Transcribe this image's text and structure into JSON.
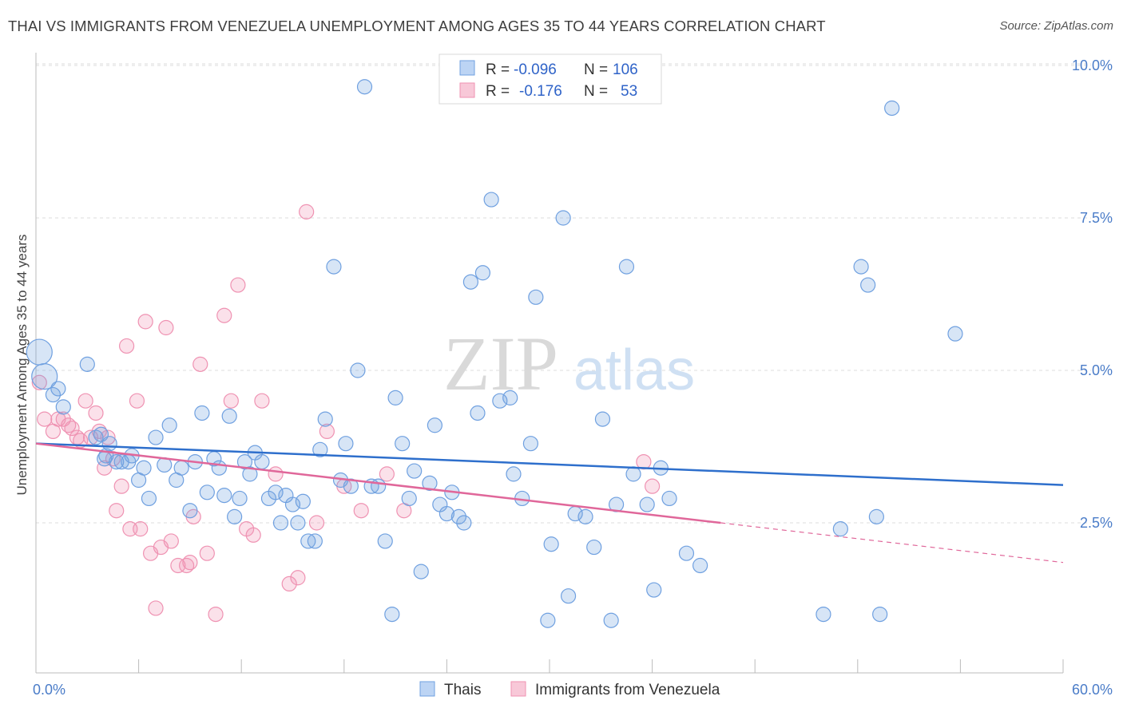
{
  "header": {
    "title": "THAI VS IMMIGRANTS FROM VENEZUELA UNEMPLOYMENT AMONG AGES 35 TO 44 YEARS CORRELATION CHART",
    "source": "Source: ZipAtlas.com"
  },
  "watermark": {
    "zip": "ZIP",
    "atlas": "atlas"
  },
  "legend_top": {
    "rows": [
      {
        "r_label": "R =",
        "r_value": "-0.096",
        "n_label": "N =",
        "n_value": "106"
      },
      {
        "r_label": "R =",
        "r_value": "-0.176",
        "n_label": "N =",
        "n_value": "53"
      }
    ]
  },
  "legend_bottom": {
    "items": [
      "Thais",
      "Immigrants from Venezuela"
    ]
  },
  "chart_data": {
    "type": "scatter",
    "title": "THAI VS IMMIGRANTS FROM VENEZUELA UNEMPLOYMENT AMONG AGES 35 TO 44 YEARS CORRELATION CHART",
    "ylabel": "Unemployment Among Ages 35 to 44 years",
    "xlim": [
      0,
      60
    ],
    "ylim": [
      0,
      10.5
    ],
    "x_tick_labels": [
      "0.0%",
      "60.0%"
    ],
    "y_ticks": [
      2.5,
      5.0,
      7.5,
      10.0
    ],
    "y_tick_labels": [
      "2.5%",
      "5.0%",
      "7.5%",
      "10.0%"
    ],
    "grid": true,
    "colors": {
      "thais": "#6fa0e0",
      "venezuela": "#ef92b2",
      "thais_line": "#2e6fcc",
      "venezuela_line": "#e0679a"
    },
    "series": [
      {
        "name": "Thais",
        "color": "#6fa0e0",
        "trend": {
          "x": [
            0,
            60
          ],
          "y": [
            3.8,
            3.12
          ]
        },
        "points": [
          [
            0.2,
            5.3
          ],
          [
            0.5,
            4.9
          ],
          [
            1.0,
            4.6
          ],
          [
            1.3,
            4.7
          ],
          [
            1.6,
            4.4
          ],
          [
            3.0,
            5.1
          ],
          [
            3.5,
            3.9
          ],
          [
            3.8,
            3.95
          ],
          [
            4.0,
            3.55
          ],
          [
            4.1,
            3.6
          ],
          [
            4.3,
            3.8
          ],
          [
            4.7,
            3.5
          ],
          [
            5.0,
            3.5
          ],
          [
            5.4,
            3.5
          ],
          [
            5.6,
            3.6
          ],
          [
            6.0,
            3.2
          ],
          [
            6.3,
            3.4
          ],
          [
            6.6,
            2.9
          ],
          [
            7.0,
            3.9
          ],
          [
            7.5,
            3.45
          ],
          [
            7.8,
            4.1
          ],
          [
            8.2,
            3.2
          ],
          [
            8.5,
            3.4
          ],
          [
            9.0,
            2.7
          ],
          [
            9.3,
            3.5
          ],
          [
            9.7,
            4.3
          ],
          [
            10.0,
            3.0
          ],
          [
            10.4,
            3.55
          ],
          [
            10.7,
            3.4
          ],
          [
            11.0,
            2.95
          ],
          [
            11.3,
            4.25
          ],
          [
            11.6,
            2.6
          ],
          [
            11.9,
            2.9
          ],
          [
            12.2,
            3.5
          ],
          [
            12.5,
            3.3
          ],
          [
            12.8,
            3.65
          ],
          [
            13.2,
            3.5
          ],
          [
            13.6,
            2.9
          ],
          [
            14.0,
            3.0
          ],
          [
            14.3,
            2.5
          ],
          [
            14.6,
            2.95
          ],
          [
            15.0,
            2.8
          ],
          [
            15.3,
            2.5
          ],
          [
            15.6,
            2.85
          ],
          [
            15.9,
            2.2
          ],
          [
            16.3,
            2.2
          ],
          [
            16.6,
            3.7
          ],
          [
            16.9,
            4.2
          ],
          [
            17.4,
            6.7
          ],
          [
            17.8,
            3.2
          ],
          [
            18.1,
            3.8
          ],
          [
            18.4,
            3.1
          ],
          [
            18.8,
            5.0
          ],
          [
            19.2,
            9.65
          ],
          [
            19.6,
            3.1
          ],
          [
            20.0,
            3.1
          ],
          [
            20.4,
            2.2
          ],
          [
            20.8,
            1.0
          ],
          [
            21.0,
            4.55
          ],
          [
            21.4,
            3.8
          ],
          [
            21.8,
            2.9
          ],
          [
            22.1,
            3.35
          ],
          [
            22.5,
            1.7
          ],
          [
            23.0,
            3.15
          ],
          [
            23.3,
            4.1
          ],
          [
            23.6,
            2.8
          ],
          [
            24.0,
            2.65
          ],
          [
            24.3,
            3.0
          ],
          [
            24.7,
            2.6
          ],
          [
            25.0,
            2.5
          ],
          [
            25.4,
            6.45
          ],
          [
            25.8,
            4.3
          ],
          [
            26.1,
            6.6
          ],
          [
            26.6,
            7.8
          ],
          [
            27.1,
            4.5
          ],
          [
            27.7,
            4.55
          ],
          [
            27.9,
            3.3
          ],
          [
            28.4,
            2.9
          ],
          [
            28.9,
            3.8
          ],
          [
            29.2,
            6.2
          ],
          [
            29.9,
            0.9
          ],
          [
            30.1,
            2.15
          ],
          [
            30.8,
            7.5
          ],
          [
            31.1,
            1.3
          ],
          [
            31.5,
            2.65
          ],
          [
            32.1,
            2.6
          ],
          [
            32.6,
            2.1
          ],
          [
            33.1,
            4.2
          ],
          [
            33.6,
            0.9
          ],
          [
            33.9,
            2.8
          ],
          [
            34.5,
            6.7
          ],
          [
            34.9,
            3.3
          ],
          [
            35.7,
            2.8
          ],
          [
            36.1,
            1.4
          ],
          [
            36.5,
            3.4
          ],
          [
            37.0,
            2.9
          ],
          [
            38.0,
            2.0
          ],
          [
            38.8,
            1.8
          ],
          [
            46.0,
            1.0
          ],
          [
            47.0,
            2.4
          ],
          [
            48.2,
            6.7
          ],
          [
            48.6,
            6.4
          ],
          [
            49.1,
            2.6
          ],
          [
            49.3,
            1.0
          ],
          [
            53.7,
            5.6
          ],
          [
            50.0,
            9.3
          ]
        ]
      },
      {
        "name": "Immigrants from Venezuela",
        "color": "#ef92b2",
        "trend": {
          "x": [
            0,
            40
          ],
          "y": [
            3.8,
            2.5
          ]
        },
        "trend_dashed": {
          "x": [
            40,
            60
          ],
          "y": [
            2.5,
            1.85
          ]
        },
        "points": [
          [
            0.2,
            4.8
          ],
          [
            0.5,
            4.2
          ],
          [
            1.0,
            4.0
          ],
          [
            1.3,
            4.2
          ],
          [
            1.6,
            4.2
          ],
          [
            1.9,
            4.1
          ],
          [
            2.1,
            4.05
          ],
          [
            2.4,
            3.9
          ],
          [
            2.6,
            3.85
          ],
          [
            2.9,
            4.5
          ],
          [
            3.2,
            3.9
          ],
          [
            3.5,
            4.3
          ],
          [
            3.7,
            4.0
          ],
          [
            4.0,
            3.4
          ],
          [
            4.2,
            3.9
          ],
          [
            4.5,
            3.55
          ],
          [
            4.7,
            2.7
          ],
          [
            5.0,
            3.1
          ],
          [
            5.3,
            5.4
          ],
          [
            5.5,
            2.4
          ],
          [
            5.9,
            4.5
          ],
          [
            6.1,
            2.4
          ],
          [
            6.4,
            5.8
          ],
          [
            6.7,
            2.0
          ],
          [
            7.0,
            1.1
          ],
          [
            7.3,
            2.1
          ],
          [
            7.6,
            5.7
          ],
          [
            7.9,
            2.2
          ],
          [
            8.3,
            1.8
          ],
          [
            8.8,
            1.8
          ],
          [
            9.2,
            2.6
          ],
          [
            9.6,
            5.1
          ],
          [
            10.0,
            2.0
          ],
          [
            10.5,
            1.0
          ],
          [
            11.0,
            5.9
          ],
          [
            11.4,
            4.5
          ],
          [
            11.8,
            6.4
          ],
          [
            12.3,
            2.4
          ],
          [
            12.7,
            2.3
          ],
          [
            13.2,
            4.5
          ],
          [
            14.0,
            3.3
          ],
          [
            14.8,
            1.5
          ],
          [
            15.3,
            1.6
          ],
          [
            15.8,
            7.6
          ],
          [
            16.4,
            2.5
          ],
          [
            17.0,
            4.0
          ],
          [
            18.0,
            3.1
          ],
          [
            19.0,
            2.7
          ],
          [
            20.5,
            3.3
          ],
          [
            21.5,
            2.7
          ],
          [
            35.5,
            3.5
          ],
          [
            36.0,
            3.1
          ],
          [
            9.0,
            1.85
          ]
        ]
      }
    ]
  }
}
